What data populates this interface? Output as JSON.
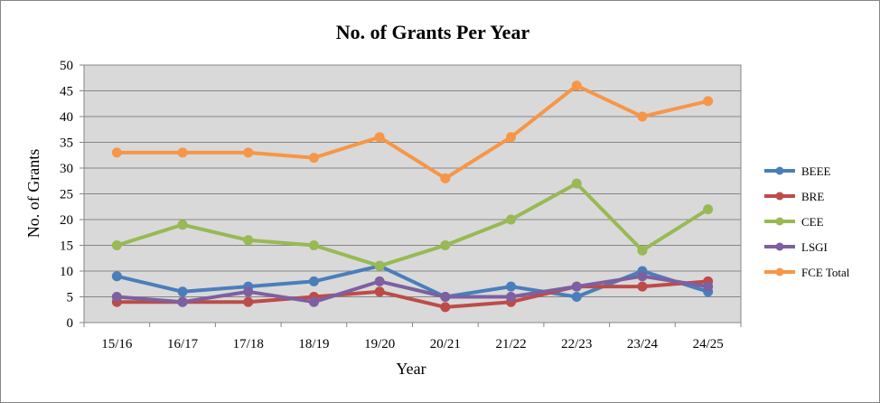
{
  "chart_data": {
    "type": "line",
    "title": "No. of Grants Per Year",
    "xlabel": "Year",
    "ylabel": "No. of Grants",
    "ylim": [
      0,
      50
    ],
    "y_ticks": [
      0,
      5,
      10,
      15,
      20,
      25,
      30,
      35,
      40,
      45,
      50
    ],
    "grid": true,
    "legend_position": "right",
    "categories": [
      "15/16",
      "16/17",
      "17/18",
      "18/19",
      "19/20",
      "20/21",
      "21/22",
      "22/23",
      "23/24",
      "24/25"
    ],
    "series": [
      {
        "name": "BEEE",
        "color": "#4a7ebb",
        "values": [
          9,
          6,
          7,
          8,
          11,
          5,
          7,
          5,
          10,
          6
        ]
      },
      {
        "name": "BRE",
        "color": "#be4b48",
        "values": [
          4,
          4,
          4,
          5,
          6,
          3,
          4,
          7,
          7,
          8
        ]
      },
      {
        "name": "CEE",
        "color": "#98b954",
        "values": [
          15,
          19,
          16,
          15,
          11,
          15,
          20,
          27,
          14,
          22
        ]
      },
      {
        "name": "LSGI",
        "color": "#7d60a0",
        "values": [
          5,
          4,
          6,
          4,
          8,
          5,
          5,
          7,
          9,
          7
        ]
      },
      {
        "name": "FCE Total",
        "color": "#f79646",
        "values": [
          33,
          33,
          33,
          32,
          36,
          28,
          36,
          46,
          40,
          43
        ]
      }
    ],
    "plot_background": "#d9d9d9"
  }
}
